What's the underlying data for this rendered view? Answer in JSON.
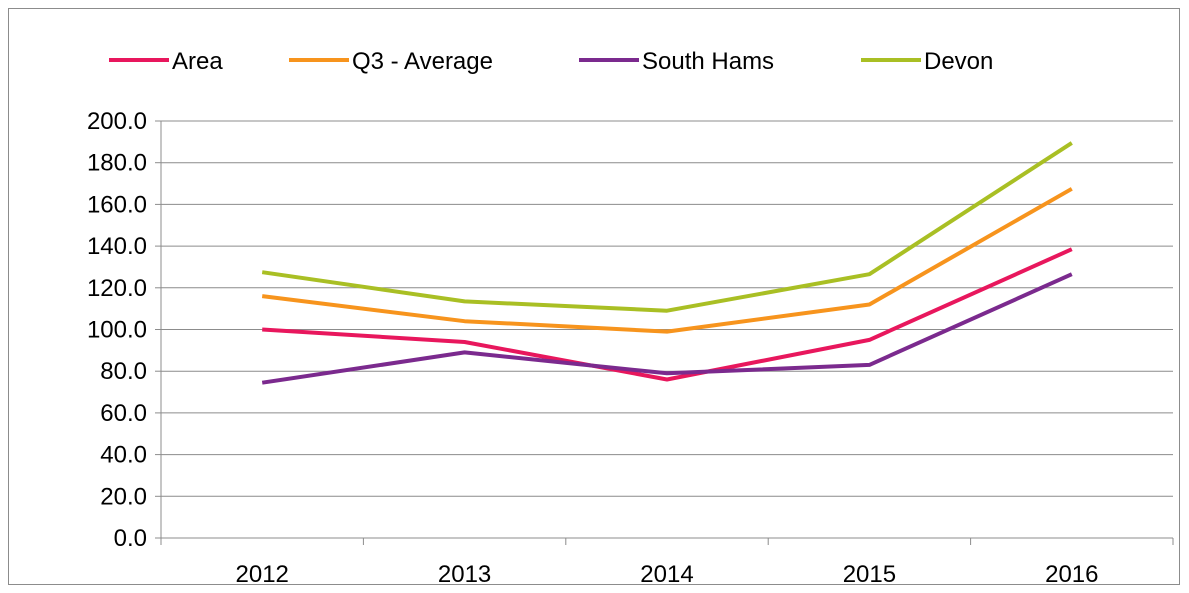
{
  "chart_data": {
    "type": "line",
    "title": "",
    "xlabel": "",
    "ylabel": "",
    "categories": [
      "2012",
      "2013",
      "2014",
      "2015",
      "2016"
    ],
    "ylim": [
      0,
      200
    ],
    "y_ticks": [
      "0.0",
      "20.0",
      "40.0",
      "60.0",
      "80.0",
      "100.0",
      "120.0",
      "140.0",
      "160.0",
      "180.0",
      "200.0"
    ],
    "grid": "horizontal",
    "legend_position": "top",
    "series": [
      {
        "name": "Area",
        "color": "#e8175d",
        "values": [
          100.0,
          94.0,
          76.0,
          95.0,
          138.5
        ]
      },
      {
        "name": "Q3 - Average",
        "color": "#f7941d",
        "values": [
          116.0,
          104.0,
          99.0,
          112.0,
          167.5
        ]
      },
      {
        "name": "South Hams",
        "color": "#7b2a8e",
        "values": [
          74.5,
          89.0,
          79.0,
          83.0,
          126.5
        ]
      },
      {
        "name": "Devon",
        "color": "#a9bf24",
        "values": [
          127.5,
          113.5,
          109.0,
          126.5,
          189.5
        ]
      }
    ]
  }
}
